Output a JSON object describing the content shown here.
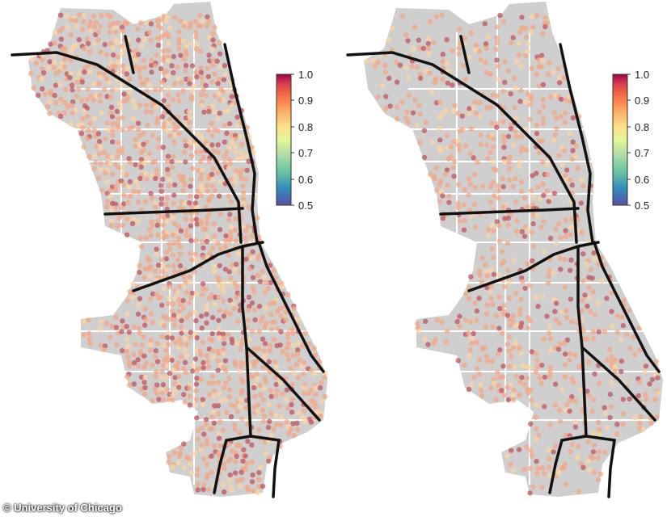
{
  "credit": "© University of Chicago",
  "colorbar": {
    "ticks": [
      "1.0",
      "0.9",
      "0.8",
      "0.7",
      "0.6",
      "0.5"
    ],
    "min": 0.5,
    "max": 1.0,
    "stops": [
      "#5e4fa2",
      "#3288bd",
      "#66c2a5",
      "#abdda4",
      "#e6f598",
      "#fee08b",
      "#fdae61",
      "#f46d43",
      "#d53e4f",
      "#9e0142"
    ]
  },
  "colors": {
    "land": "#cfcfcf",
    "streets": "#ffffff",
    "rail": "#111111",
    "dot_low": "#fdd49e",
    "dot_mid": "#f4a582",
    "dot_high": "#c2535d"
  },
  "maps": [
    {
      "id": "left",
      "density": 1.0
    },
    {
      "id": "right",
      "density": 0.55
    }
  ]
}
